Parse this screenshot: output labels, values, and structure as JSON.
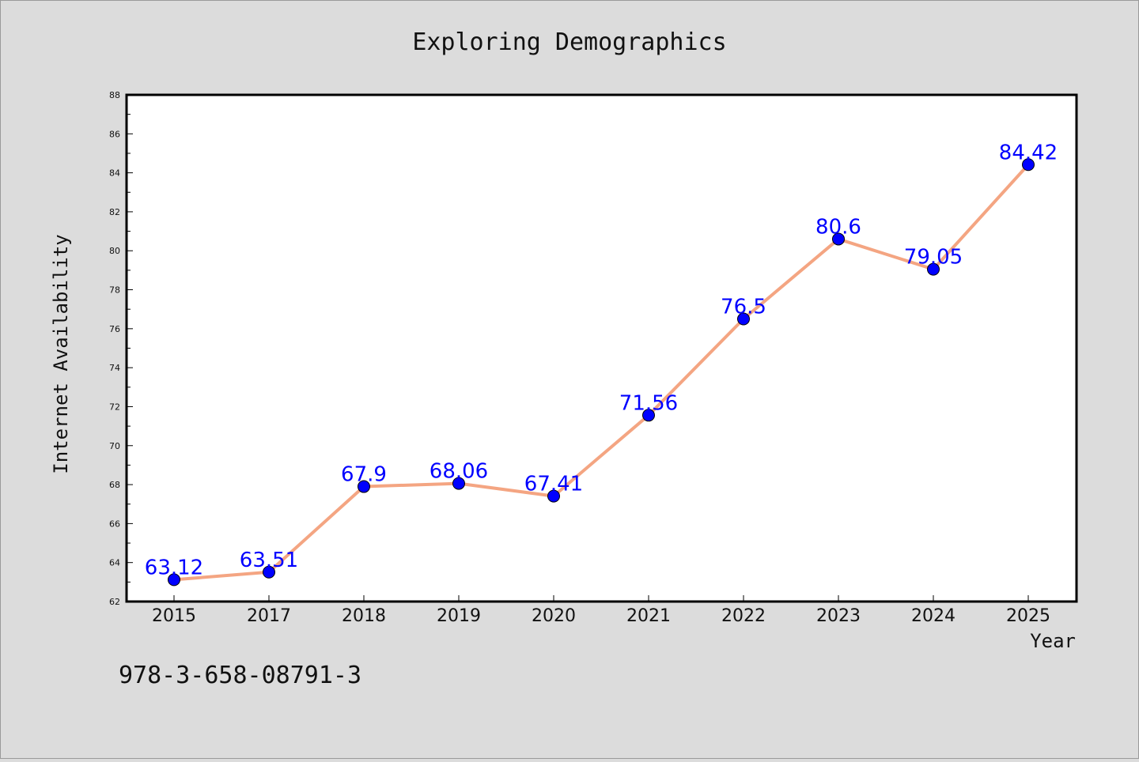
{
  "chart_data": {
    "type": "line",
    "title": "Exploring Demographics",
    "xlabel": "Year",
    "ylabel": "Internet Availability",
    "categories": [
      "2015",
      "2017",
      "2018",
      "2019",
      "2020",
      "2021",
      "2022",
      "2023",
      "2024",
      "2025"
    ],
    "series": [
      {
        "values": [
          63.12,
          63.51,
          67.9,
          68.06,
          67.41,
          71.56,
          76.5,
          80.6,
          79.05,
          84.42
        ],
        "data_labels": [
          "63.12",
          "63.51",
          "67.9",
          "68.06",
          "67.41",
          "71.56",
          "76.5",
          "80.6",
          "79.05",
          "84.42"
        ],
        "line_color": "#f4a582",
        "marker_color": "#0000ff",
        "label_color": "#0000ff"
      }
    ],
    "ylim": [
      62,
      88
    ],
    "yticks": [
      "62",
      "64",
      "66",
      "68",
      "70",
      "72",
      "74",
      "76",
      "78",
      "80",
      "82",
      "84",
      "86",
      "88"
    ],
    "grid": false,
    "legend": "none"
  },
  "annotation": {
    "text": "978-3-658-08791-3"
  },
  "colors": {
    "background": "#dcdcdc",
    "plot_background": "#ffffff"
  }
}
